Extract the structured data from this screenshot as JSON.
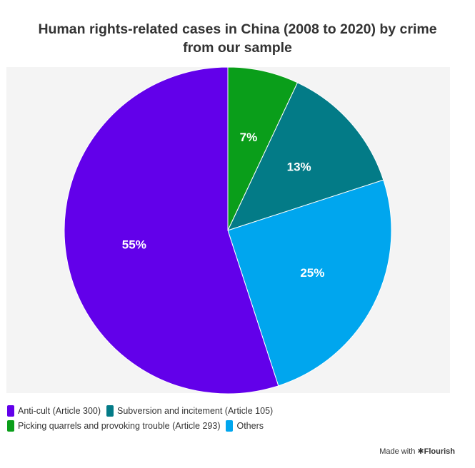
{
  "title_line1": "Human rights-related cases in China (2008 to 2020) by crime",
  "title_line2": "from our sample",
  "chart_data": {
    "type": "pie",
    "slices": [
      {
        "name": "Picking quarrels and provoking trouble (Article 293)",
        "value": 7,
        "label": "7%",
        "color": "#0a9e1a"
      },
      {
        "name": "Subversion and incitement (Article 105)",
        "value": 13,
        "label": "13%",
        "color": "#037b87"
      },
      {
        "name": "Others",
        "value": 25,
        "label": "25%",
        "color": "#00a6ee"
      },
      {
        "name": "Anti-cult (Article 300)",
        "value": 55,
        "label": "55%",
        "color": "#6200ea"
      }
    ]
  },
  "legend": [
    [
      "Anti-cult (Article 300)",
      "Subversion and incitement (Article 105)"
    ],
    [
      "Picking quarrels and provoking trouble (Article 293)",
      "Others"
    ]
  ],
  "credit": {
    "prefix": "Made with",
    "brand": "✱Flourish"
  }
}
